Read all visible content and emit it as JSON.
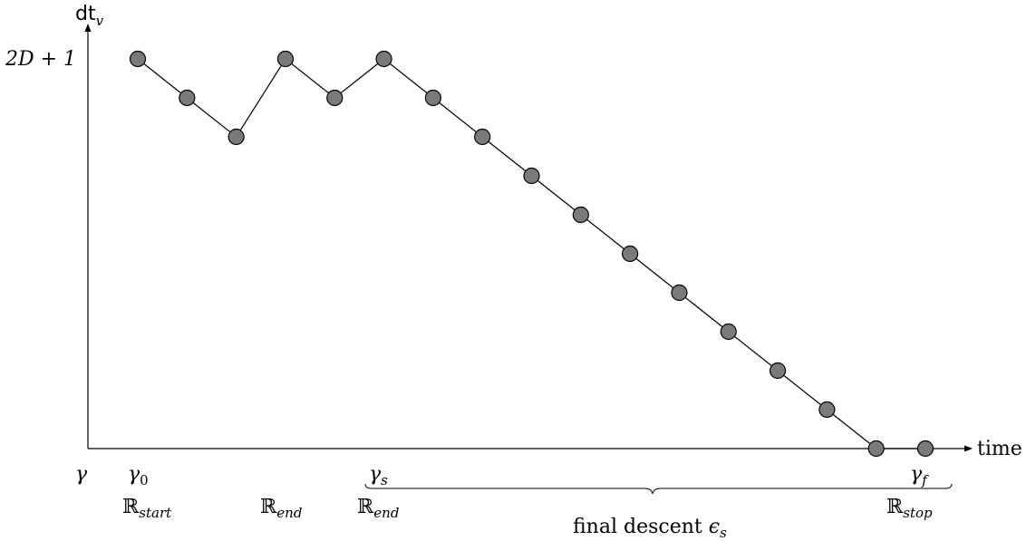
{
  "axes": {
    "y_label_main": "dt",
    "y_label_sub": "v",
    "x_label": "time",
    "y_tick": "2D + 1"
  },
  "chart_data": {
    "type": "line",
    "y_max_level": 10,
    "points": [
      {
        "x": 0,
        "y": 10
      },
      {
        "x": 1,
        "y": 9
      },
      {
        "x": 2,
        "y": 8
      },
      {
        "x": 3,
        "y": 10
      },
      {
        "x": 4,
        "y": 9
      },
      {
        "x": 5,
        "y": 10
      },
      {
        "x": 6,
        "y": 9
      },
      {
        "x": 7,
        "y": 8
      },
      {
        "x": 8,
        "y": 7
      },
      {
        "x": 9,
        "y": 6
      },
      {
        "x": 10,
        "y": 5
      },
      {
        "x": 11,
        "y": 4
      },
      {
        "x": 12,
        "y": 3
      },
      {
        "x": 13,
        "y": 2
      },
      {
        "x": 14,
        "y": 1
      },
      {
        "x": 15,
        "y": 0
      },
      {
        "x": 16,
        "y": 0
      }
    ]
  },
  "labels": {
    "gamma": "γ",
    "gamma0_main": "γ",
    "gamma0_sub": "0",
    "gammas_main": "γ",
    "gammas_sub": "s",
    "gammaf_main": "γ",
    "gammaf_sub": "f",
    "r_start_main": "ℝ",
    "r_start_sub": "start",
    "r_end1_main": "ℝ",
    "r_end1_sub": "end",
    "r_end2_main": "ℝ",
    "r_end2_sub": "end",
    "r_stop_main": "ℝ",
    "r_stop_sub": "stop",
    "brace_text": "final descent ",
    "brace_eps_main": "ϵ",
    "brace_eps_sub": "s"
  }
}
